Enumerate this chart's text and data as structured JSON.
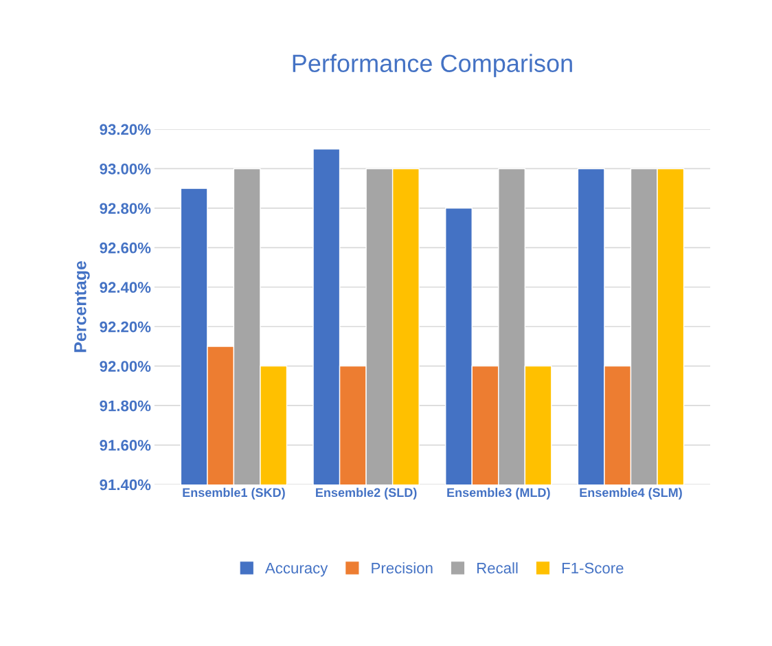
{
  "chart_data": {
    "type": "bar",
    "title": "Performance Comparison",
    "ylabel": "Percentage",
    "categories": [
      "Ensemble1 (SKD)",
      "Ensemble2 (SLD)",
      "Ensemble3 (MLD)",
      "Ensemble4 (SLM)"
    ],
    "series": [
      {
        "name": "Accuracy",
        "color": "#4472c4",
        "values": [
          92.9,
          93.1,
          92.8,
          93.0
        ]
      },
      {
        "name": "Precision",
        "color": "#ed7d31",
        "values": [
          92.1,
          92.0,
          92.0,
          92.0
        ]
      },
      {
        "name": "Recall",
        "color": "#a5a5a5",
        "values": [
          93.0,
          93.0,
          93.0,
          93.0
        ]
      },
      {
        "name": "F1-Score",
        "color": "#ffc000",
        "values": [
          92.0,
          93.0,
          92.0,
          93.0
        ]
      }
    ],
    "ylim": [
      91.4,
      93.2
    ],
    "yticks": [
      {
        "value": 91.4,
        "label": "91.40%"
      },
      {
        "value": 91.6,
        "label": "91.60%"
      },
      {
        "value": 91.8,
        "label": "91.80%"
      },
      {
        "value": 92.0,
        "label": "92.00%"
      },
      {
        "value": 92.2,
        "label": "92.20%"
      },
      {
        "value": 92.4,
        "label": "92.40%"
      },
      {
        "value": 92.6,
        "label": "92.60%"
      },
      {
        "value": 92.8,
        "label": "92.80%"
      },
      {
        "value": 93.0,
        "label": "93.00%"
      },
      {
        "value": 93.2,
        "label": "93.20%"
      }
    ],
    "grid": "y",
    "legend": "bottom"
  }
}
